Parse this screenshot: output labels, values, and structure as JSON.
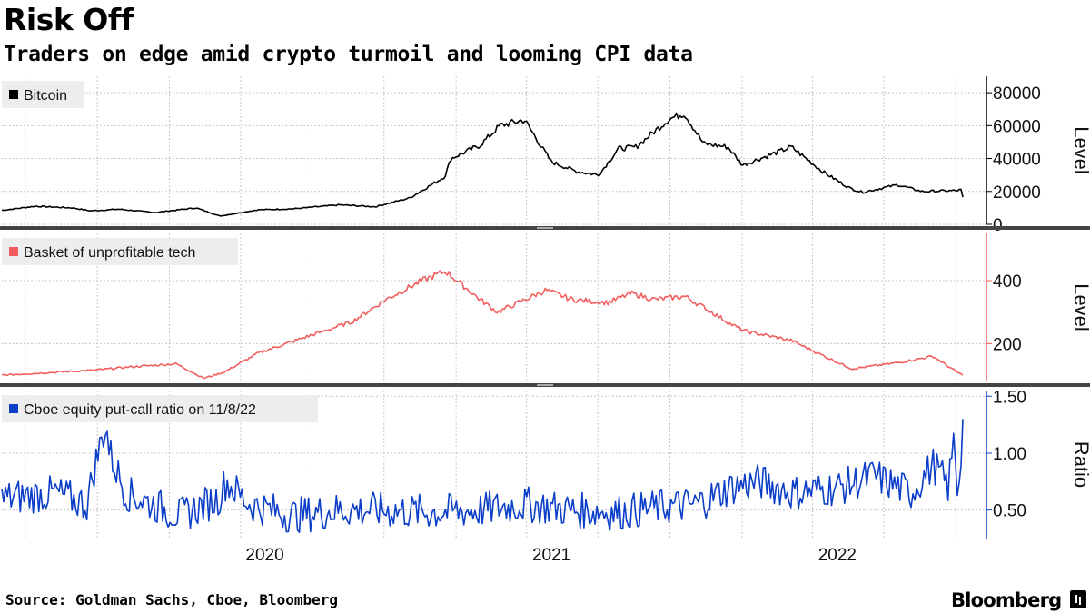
{
  "title": "Risk Off",
  "subtitle": "Traders on edge amid crypto turmoil and looming CPI data",
  "source": "Source: Goldman Sachs, Cboe, Bloomberg",
  "brand": "Bloomberg",
  "colors": {
    "bitcoin": "#000000",
    "tech": "#f25e5e",
    "putcall": "#0c3fc9",
    "grid": "#c8c8c8",
    "separator": "#444444"
  },
  "x_axis": {
    "start": "2019-06-01",
    "end": "2022-11-08",
    "tick_labels": [
      "2020",
      "2021",
      "2022"
    ]
  },
  "chart_data": [
    {
      "type": "line",
      "legend": "Bitcoin",
      "ylabel": "Level",
      "ylim": [
        0,
        90000
      ],
      "yticks": [
        0,
        20000,
        40000,
        60000,
        80000
      ],
      "grid": true,
      "legend_position": "top-left",
      "x": [
        "2019-06-01",
        "2019-07-15",
        "2019-09-01",
        "2019-09-25",
        "2019-11-01",
        "2019-12-18",
        "2020-02-10",
        "2020-03-12",
        "2020-04-30",
        "2020-06-15",
        "2020-08-15",
        "2020-10-01",
        "2020-11-15",
        "2020-12-31",
        "2021-01-08",
        "2021-02-15",
        "2021-03-13",
        "2021-04-14",
        "2021-05-19",
        "2021-06-22",
        "2021-07-20",
        "2021-08-15",
        "2021-09-07",
        "2021-10-20",
        "2021-11-09",
        "2021-12-04",
        "2022-01-05",
        "2022-01-24",
        "2022-03-29",
        "2022-05-09",
        "2022-06-13",
        "2022-06-30",
        "2022-08-15",
        "2022-09-15",
        "2022-10-31",
        "2022-11-06",
        "2022-11-08"
      ],
      "values": [
        8500,
        11000,
        10000,
        8200,
        9200,
        7200,
        10000,
        5000,
        8800,
        9400,
        11800,
        10700,
        16000,
        29000,
        40000,
        48000,
        60000,
        63500,
        38000,
        32000,
        30000,
        46000,
        47000,
        64000,
        67500,
        49000,
        47000,
        36000,
        47000,
        32000,
        22000,
        19500,
        24000,
        20000,
        20500,
        21000,
        16500
      ]
    },
    {
      "type": "line",
      "legend": "Basket of unprofitable tech",
      "ylabel": "Level",
      "ylim": [
        80,
        550
      ],
      "yticks": [
        200,
        400
      ],
      "grid": true,
      "legend_position": "top-left",
      "x": [
        "2019-06-01",
        "2019-08-01",
        "2019-10-01",
        "2019-11-15",
        "2020-01-15",
        "2020-02-20",
        "2020-03-18",
        "2020-05-01",
        "2020-07-01",
        "2020-09-01",
        "2020-10-15",
        "2020-12-01",
        "2021-01-01",
        "2021-02-15",
        "2021-03-10",
        "2021-05-12",
        "2021-06-15",
        "2021-08-01",
        "2021-09-01",
        "2021-10-01",
        "2021-11-10",
        "2021-12-15",
        "2022-01-10",
        "2022-01-27",
        "2022-03-29",
        "2022-05-11",
        "2022-06-16",
        "2022-08-16",
        "2022-09-30",
        "2022-10-31",
        "2022-11-08"
      ],
      "values": [
        100,
        108,
        116,
        126,
        136,
        90,
        110,
        170,
        220,
        270,
        340,
        400,
        430,
        340,
        300,
        370,
        340,
        330,
        360,
        340,
        350,
        300,
        260,
        240,
        210,
        160,
        120,
        140,
        160,
        110,
        100
      ]
    },
    {
      "type": "line",
      "legend": "Cboe equity put-call ratio on 11/8/22",
      "ylabel": "Ratio",
      "ylim": [
        0.25,
        1.55
      ],
      "yticks": [
        0.5,
        1.0,
        1.5
      ],
      "tick_labels": [
        "0.50",
        "1.00",
        "1.50"
      ],
      "grid": true,
      "legend_position": "top-left",
      "x": [
        "2019-06-01",
        "2019-08-10",
        "2019-09-20",
        "2019-10-01",
        "2019-10-15",
        "2019-10-20",
        "2019-11-10",
        "2019-12-15",
        "2020-01-20",
        "2020-03-10",
        "2020-03-20",
        "2020-04-20",
        "2020-06-15",
        "2020-08-15",
        "2020-10-01",
        "2020-12-15",
        "2021-02-15",
        "2021-04-15",
        "2021-06-15",
        "2021-08-15",
        "2021-10-01",
        "2021-11-25",
        "2022-01-10",
        "2022-02-15",
        "2022-04-01",
        "2022-06-01",
        "2022-07-15",
        "2022-09-01",
        "2022-10-01",
        "2022-10-20",
        "2022-10-28",
        "2022-11-01",
        "2022-11-04",
        "2022-11-08"
      ],
      "values": [
        0.6,
        0.65,
        0.55,
        0.9,
        1.25,
        1.0,
        0.65,
        0.55,
        0.45,
        0.6,
        0.75,
        0.55,
        0.45,
        0.5,
        0.5,
        0.48,
        0.5,
        0.55,
        0.5,
        0.48,
        0.52,
        0.55,
        0.7,
        0.75,
        0.65,
        0.7,
        0.8,
        0.65,
        0.9,
        0.7,
        1.15,
        0.65,
        0.85,
        1.3
      ]
    }
  ]
}
